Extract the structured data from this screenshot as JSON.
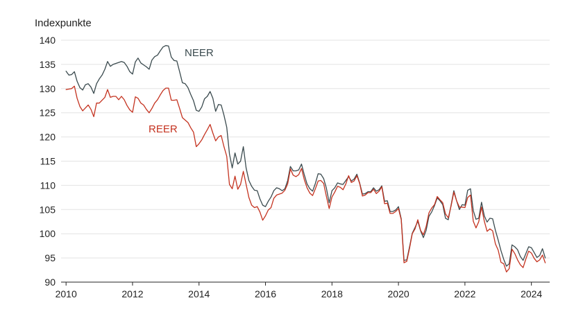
{
  "chart_data": {
    "type": "line",
    "ylabel": "Indexpunkte",
    "ylim": [
      90,
      140
    ],
    "xlim": [
      2009.85,
      2024.55
    ],
    "grid": true,
    "y_ticks": [
      90,
      95,
      100,
      105,
      110,
      115,
      120,
      125,
      130,
      135,
      140
    ],
    "x_ticks": [
      2010,
      2012,
      2014,
      2016,
      2018,
      2020,
      2022,
      2024
    ],
    "x_start": 2010.0,
    "x_step": 0.0833333,
    "series": [
      {
        "name": "NEER",
        "color": "#3a4a4e",
        "values": [
          133.6,
          132.8,
          132.9,
          133.5,
          131.5,
          130.2,
          129.7,
          130.8,
          131.0,
          130.3,
          129.0,
          131.0,
          132.0,
          132.8,
          134.0,
          135.6,
          134.6,
          135.0,
          135.2,
          135.4,
          135.6,
          135.4,
          134.6,
          133.5,
          133.0,
          135.5,
          136.3,
          135.3,
          134.9,
          134.5,
          134.0,
          135.9,
          136.6,
          136.9,
          137.8,
          138.6,
          138.9,
          138.8,
          136.5,
          135.8,
          135.7,
          133.5,
          131.2,
          131.0,
          130.2,
          128.8,
          127.5,
          125.5,
          125.3,
          126.2,
          127.9,
          128.4,
          129.4,
          128.0,
          125.3,
          126.7,
          126.6,
          124.5,
          122.0,
          116.5,
          113.6,
          116.7,
          114.4,
          115.0,
          118.0,
          113.6,
          111.0,
          109.8,
          109.0,
          108.9,
          107.2,
          105.9,
          105.6,
          106.7,
          107.6,
          108.9,
          109.5,
          109.3,
          108.9,
          109.3,
          111.0,
          113.9,
          113.0,
          113.0,
          113.2,
          114.4,
          112.2,
          110.3,
          109.3,
          108.8,
          110.4,
          112.4,
          112.3,
          111.4,
          109.4,
          106.4,
          108.9,
          109.5,
          110.5,
          110.3,
          110.2,
          111.0,
          111.8,
          110.9,
          111.3,
          112.3,
          110.5,
          108.2,
          108.3,
          108.7,
          108.7,
          109.5,
          108.8,
          109.1,
          109.9,
          106.7,
          106.8,
          104.6,
          104.6,
          104.9,
          105.6,
          103.1,
          94.5,
          94.6,
          97.3,
          100.1,
          101.3,
          102.6,
          100.6,
          99.2,
          100.7,
          103.6,
          104.5,
          105.8,
          107.4,
          106.8,
          106.0,
          103.2,
          102.9,
          105.9,
          108.9,
          106.8,
          105.0,
          106.0,
          105.9,
          109.0,
          109.3,
          104.8,
          103.0,
          103.2,
          106.5,
          103.7,
          102.4,
          103.2,
          103.1,
          100.7,
          98.7,
          96.5,
          94.7,
          93.3,
          93.8,
          97.7,
          97.3,
          96.7,
          95.3,
          94.5,
          95.9,
          97.3,
          97.1,
          96.1,
          95.1,
          95.5,
          96.9,
          95.0
        ]
      },
      {
        "name": "REER",
        "color": "#c4321f",
        "values": [
          129.8,
          129.9,
          130.0,
          130.5,
          128.0,
          126.3,
          125.4,
          126.0,
          126.6,
          125.7,
          124.2,
          127.0,
          127.0,
          127.6,
          128.2,
          129.8,
          128.2,
          128.4,
          128.4,
          127.7,
          128.4,
          127.7,
          126.5,
          125.6,
          125.1,
          128.3,
          128.0,
          127.0,
          126.6,
          125.7,
          125.0,
          125.9,
          127.0,
          127.7,
          128.7,
          129.6,
          130.1,
          130.1,
          127.6,
          127.6,
          127.7,
          125.9,
          124.0,
          123.5,
          123.0,
          121.9,
          121.0,
          118.0,
          118.6,
          119.4,
          120.5,
          121.5,
          122.6,
          120.8,
          119.2,
          120.0,
          120.3,
          118.0,
          116.0,
          110.2,
          109.3,
          111.9,
          109.2,
          110.2,
          112.9,
          110.2,
          107.5,
          105.9,
          105.4,
          105.6,
          104.5,
          102.8,
          103.7,
          104.9,
          105.4,
          107.3,
          108.0,
          108.2,
          108.4,
          109.0,
          110.3,
          113.4,
          112.1,
          111.8,
          112.2,
          113.5,
          111.2,
          109.5,
          108.4,
          107.9,
          109.3,
          110.9,
          111.0,
          110.4,
          107.7,
          105.2,
          107.6,
          108.6,
          109.8,
          109.6,
          109.1,
          110.3,
          112.0,
          110.6,
          110.9,
          112.0,
          110.4,
          107.8,
          108.0,
          108.5,
          108.5,
          109.2,
          108.3,
          108.8,
          109.7,
          106.2,
          106.3,
          104.2,
          104.2,
          104.6,
          105.2,
          102.9,
          94.0,
          94.3,
          97.0,
          100.0,
          101.0,
          102.9,
          100.7,
          99.8,
          101.5,
          104.3,
          105.3,
          106.0,
          107.7,
          107.0,
          106.4,
          104.1,
          103.3,
          105.7,
          108.6,
          106.8,
          105.5,
          105.5,
          105.4,
          107.5,
          108.0,
          102.6,
          101.2,
          102.5,
          105.5,
          102.6,
          100.5,
          101.0,
          100.6,
          97.9,
          96.6,
          94.1,
          93.8,
          92.1,
          92.8,
          96.8,
          95.9,
          94.6,
          93.6,
          93.0,
          94.8,
          96.4,
          96.0,
          94.9,
          94.2,
          94.6,
          95.6,
          94.0
        ]
      }
    ]
  }
}
